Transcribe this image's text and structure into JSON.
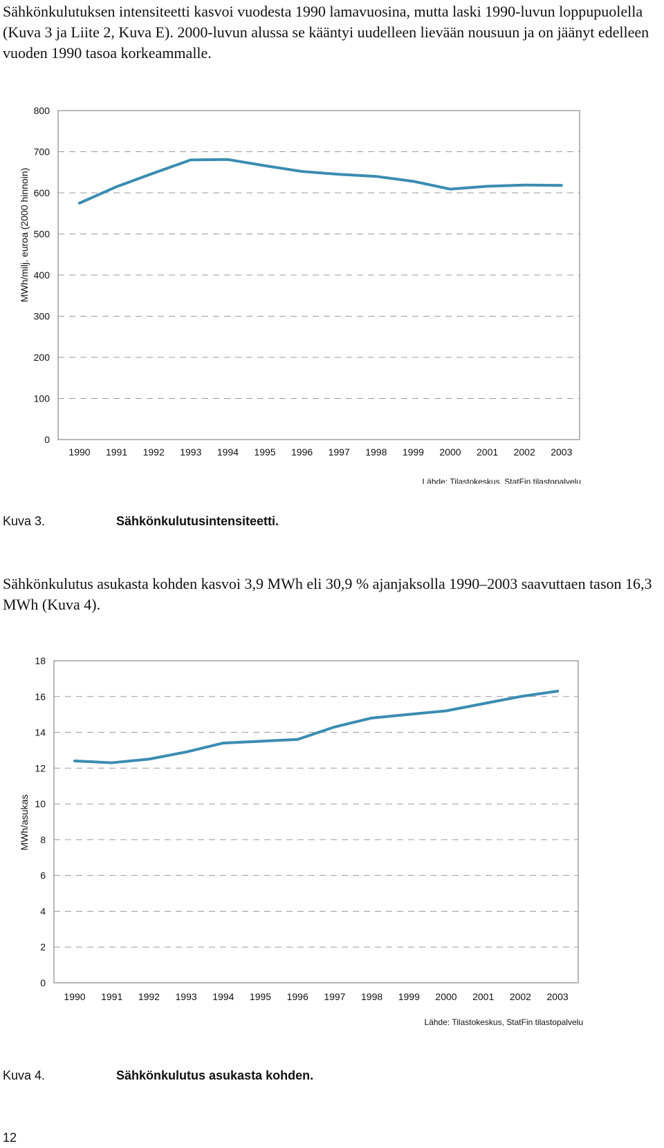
{
  "intro_paragraph": "Sähkönkulutuksen intensiteetti kasvoi vuodesta 1990 lamavuosina, mutta laski 1990-luvun loppupuolella (Kuva 3 ja Liite 2, Kuva E). 2000-luvun alussa se kääntyi uudelleen lievään nousuun ja on jäänyt edelleen vuoden 1990 tasoa korkeammalle.",
  "middle_paragraph": "Sähkönkulutus asukasta kohden kasvoi 3,9 MWh eli 30,9 % ajanjaksolla 1990–2003 saavuttaen tason 16,3 MWh (Kuva 4).",
  "page_number": "12",
  "colors": {
    "series": "#3a8cb1"
  },
  "chart_data": [
    {
      "type": "line",
      "title": "",
      "figure_number": "Kuva 3.",
      "caption": "Sähkönkulutusintensiteetti.",
      "source": "Lähde: Tilastokeskus, StatFin tilastopalvelu",
      "xlabel": "",
      "ylabel": "MWh/milj. euroa (2000 hinnoin)",
      "ylim": [
        0,
        800
      ],
      "yticks": [
        "0",
        "100",
        "200",
        "300",
        "400",
        "500",
        "600",
        "700",
        "800"
      ],
      "categories": [
        "1990",
        "1991",
        "1992",
        "1993",
        "1994",
        "1995",
        "1996",
        "1997",
        "1998",
        "1999",
        "2000",
        "2001",
        "2002",
        "2003"
      ],
      "series": [
        {
          "name": "Sähkönkulutusintensiteetti",
          "values": [
            575,
            615,
            648,
            680,
            681,
            666,
            652,
            645,
            640,
            628,
            609,
            616,
            619,
            618
          ]
        }
      ],
      "grid": true,
      "legend": "none"
    },
    {
      "type": "line",
      "title": "",
      "figure_number": "Kuva 4.",
      "caption": "Sähkönkulutus asukasta kohden.",
      "source": "Lähde: Tilastokeskus, StatFin tilastopalvelu",
      "xlabel": "",
      "ylabel": "MWh/asukas",
      "ylim": [
        0,
        18
      ],
      "yticks": [
        "0",
        "2",
        "4",
        "6",
        "8",
        "10",
        "12",
        "14",
        "16",
        "18"
      ],
      "categories": [
        "1990",
        "1991",
        "1992",
        "1993",
        "1994",
        "1995",
        "1996",
        "1997",
        "1998",
        "1999",
        "2000",
        "2001",
        "2002",
        "2003"
      ],
      "series": [
        {
          "name": "MWh/asukas",
          "values": [
            12.4,
            12.3,
            12.5,
            12.9,
            13.4,
            13.5,
            13.6,
            14.3,
            14.8,
            15.0,
            15.2,
            15.6,
            16.0,
            16.3
          ]
        }
      ],
      "grid": true,
      "legend": "none"
    }
  ]
}
